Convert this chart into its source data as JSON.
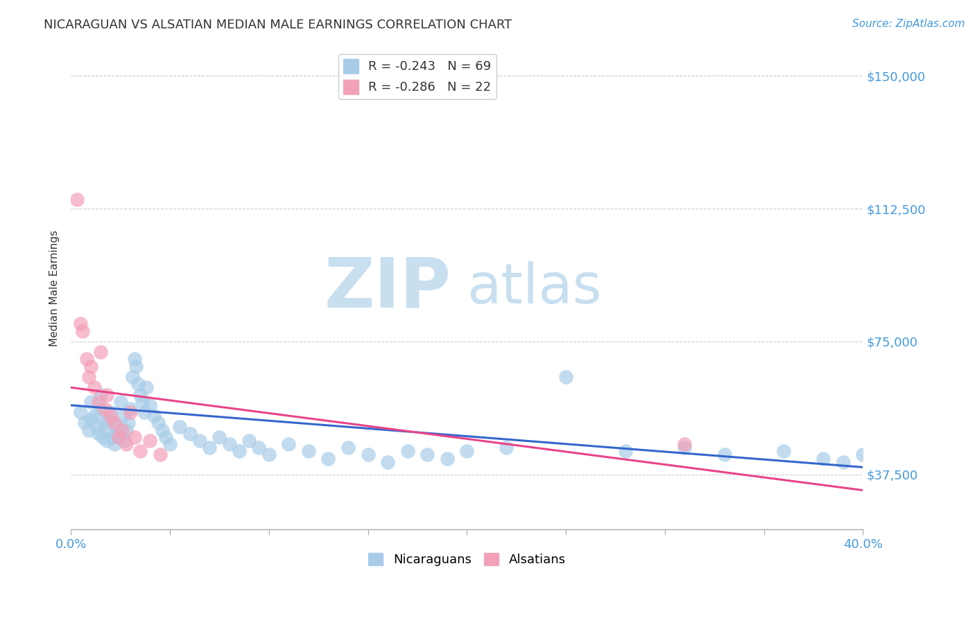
{
  "title": "NICARAGUAN VS ALSATIAN MEDIAN MALE EARNINGS CORRELATION CHART",
  "source_text": "Source: ZipAtlas.com",
  "ylabel": "Median Male Earnings",
  "x_min": 0.0,
  "x_max": 0.4,
  "y_min": 22000,
  "y_max": 158000,
  "y_ticks": [
    37500,
    75000,
    112500,
    150000
  ],
  "y_tick_labels": [
    "$37,500",
    "$75,000",
    "$112,500",
    "$150,000"
  ],
  "x_ticks": [
    0.0,
    0.05,
    0.1,
    0.15,
    0.2,
    0.25,
    0.3,
    0.35,
    0.4
  ],
  "x_label_ticks": [
    0.0,
    0.4
  ],
  "x_tick_labels": [
    "0.0%",
    "40.0%"
  ],
  "blue_color": "#a8cce8",
  "pink_color": "#f4a0b8",
  "blue_line_color": "#3366cc",
  "pink_line_color": "#e84488",
  "blue_R": -0.243,
  "blue_N": 69,
  "pink_R": -0.286,
  "pink_N": 22,
  "watermark_zip": "ZIP",
  "watermark_atlas": "atlas",
  "watermark_color": "#c8dff0",
  "background_color": "#ffffff",
  "axis_color": "#4499dd",
  "title_color": "#333333",
  "legend_label_blue": "Nicaraguans",
  "legend_label_pink": "Alsatians",
  "blue_line_x0": 0.0,
  "blue_line_y0": 57000,
  "blue_line_x1": 0.4,
  "blue_line_y1": 39500,
  "pink_line_x0": 0.0,
  "pink_line_y0": 62000,
  "pink_line_x1": 0.4,
  "pink_line_y1": 33000,
  "blue_scatter_x": [
    0.005,
    0.007,
    0.009,
    0.01,
    0.01,
    0.012,
    0.013,
    0.014,
    0.015,
    0.015,
    0.016,
    0.017,
    0.018,
    0.018,
    0.019,
    0.02,
    0.021,
    0.022,
    0.023,
    0.024,
    0.025,
    0.026,
    0.027,
    0.028,
    0.029,
    0.03,
    0.031,
    0.032,
    0.033,
    0.034,
    0.035,
    0.036,
    0.037,
    0.038,
    0.04,
    0.042,
    0.044,
    0.046,
    0.048,
    0.05,
    0.055,
    0.06,
    0.065,
    0.07,
    0.075,
    0.08,
    0.085,
    0.09,
    0.095,
    0.1,
    0.11,
    0.12,
    0.13,
    0.14,
    0.15,
    0.16,
    0.17,
    0.18,
    0.19,
    0.2,
    0.22,
    0.25,
    0.28,
    0.31,
    0.33,
    0.36,
    0.38,
    0.39,
    0.4
  ],
  "blue_scatter_y": [
    55000,
    52000,
    50000,
    58000,
    53000,
    54000,
    51000,
    49000,
    60000,
    56000,
    48000,
    52000,
    50000,
    47000,
    53000,
    55000,
    48000,
    46000,
    51000,
    49000,
    58000,
    54000,
    47000,
    50000,
    52000,
    56000,
    65000,
    70000,
    68000,
    63000,
    60000,
    58000,
    55000,
    62000,
    57000,
    54000,
    52000,
    50000,
    48000,
    46000,
    51000,
    49000,
    47000,
    45000,
    48000,
    46000,
    44000,
    47000,
    45000,
    43000,
    46000,
    44000,
    42000,
    45000,
    43000,
    41000,
    44000,
    43000,
    42000,
    44000,
    45000,
    65000,
    44000,
    45000,
    43000,
    44000,
    42000,
    41000,
    43000
  ],
  "pink_scatter_x": [
    0.003,
    0.006,
    0.008,
    0.009,
    0.01,
    0.012,
    0.014,
    0.015,
    0.017,
    0.018,
    0.02,
    0.022,
    0.024,
    0.026,
    0.028,
    0.03,
    0.032,
    0.035,
    0.04,
    0.045,
    0.31,
    0.005
  ],
  "pink_scatter_y": [
    115000,
    78000,
    70000,
    65000,
    68000,
    62000,
    58000,
    72000,
    56000,
    60000,
    54000,
    52000,
    48000,
    50000,
    46000,
    55000,
    48000,
    44000,
    47000,
    43000,
    46000,
    80000
  ]
}
